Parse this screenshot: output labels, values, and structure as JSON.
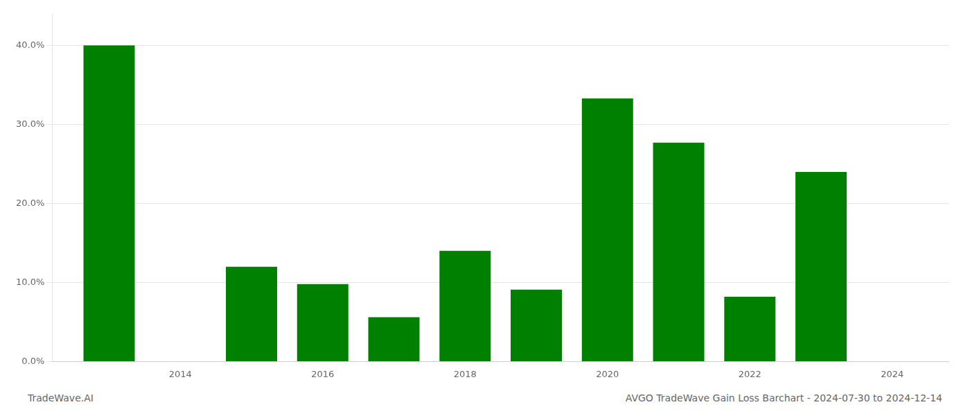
{
  "chart_data": {
    "type": "bar",
    "x": [
      2013,
      2015,
      2016,
      2017,
      2018,
      2019,
      2020,
      2021,
      2022,
      2023
    ],
    "values": [
      0.4,
      0.12,
      0.098,
      0.056,
      0.14,
      0.091,
      0.333,
      0.277,
      0.082,
      0.24
    ],
    "color": "#008000",
    "xlim": [
      2012.2,
      2024.8
    ],
    "xticks": [
      2014,
      2016,
      2018,
      2020,
      2022,
      2024
    ],
    "ylim": [
      0,
      0.44
    ],
    "yticks": [
      {
        "value": 0.0,
        "label": "0.0%"
      },
      {
        "value": 0.1,
        "label": "10.0%"
      },
      {
        "value": 0.2,
        "label": "20.0%"
      },
      {
        "value": 0.3,
        "label": "30.0%"
      },
      {
        "value": 0.4,
        "label": "40.0%"
      }
    ],
    "grid": true,
    "annotations": [
      "TradeWave.AI",
      "AVGO TradeWave Gain Loss Barchart - 2024-07-30 to 2024-12-14"
    ]
  }
}
